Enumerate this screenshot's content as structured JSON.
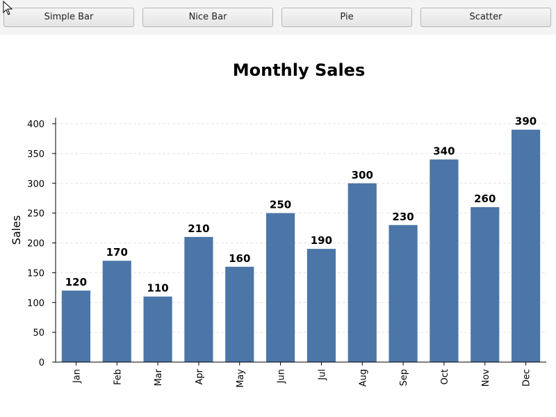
{
  "toolbar": {
    "buttons": [
      {
        "label": "Simple Bar"
      },
      {
        "label": "Nice Bar"
      },
      {
        "label": "Pie"
      },
      {
        "label": "Scatter"
      }
    ]
  },
  "chart_data": {
    "type": "bar",
    "title": "Monthly Sales",
    "xlabel": "",
    "ylabel": "Sales",
    "categories": [
      "Jan",
      "Feb",
      "Mar",
      "Apr",
      "May",
      "Jun",
      "Jul",
      "Aug",
      "Sep",
      "Oct",
      "Nov",
      "Dec"
    ],
    "values": [
      120,
      170,
      110,
      210,
      160,
      250,
      190,
      300,
      230,
      340,
      260,
      390
    ],
    "ylim": [
      0,
      410
    ],
    "yticks": [
      0,
      50,
      100,
      150,
      200,
      250,
      300,
      350,
      400
    ],
    "grid": true,
    "bar_color": "#4c76a8",
    "data_labels": true
  }
}
